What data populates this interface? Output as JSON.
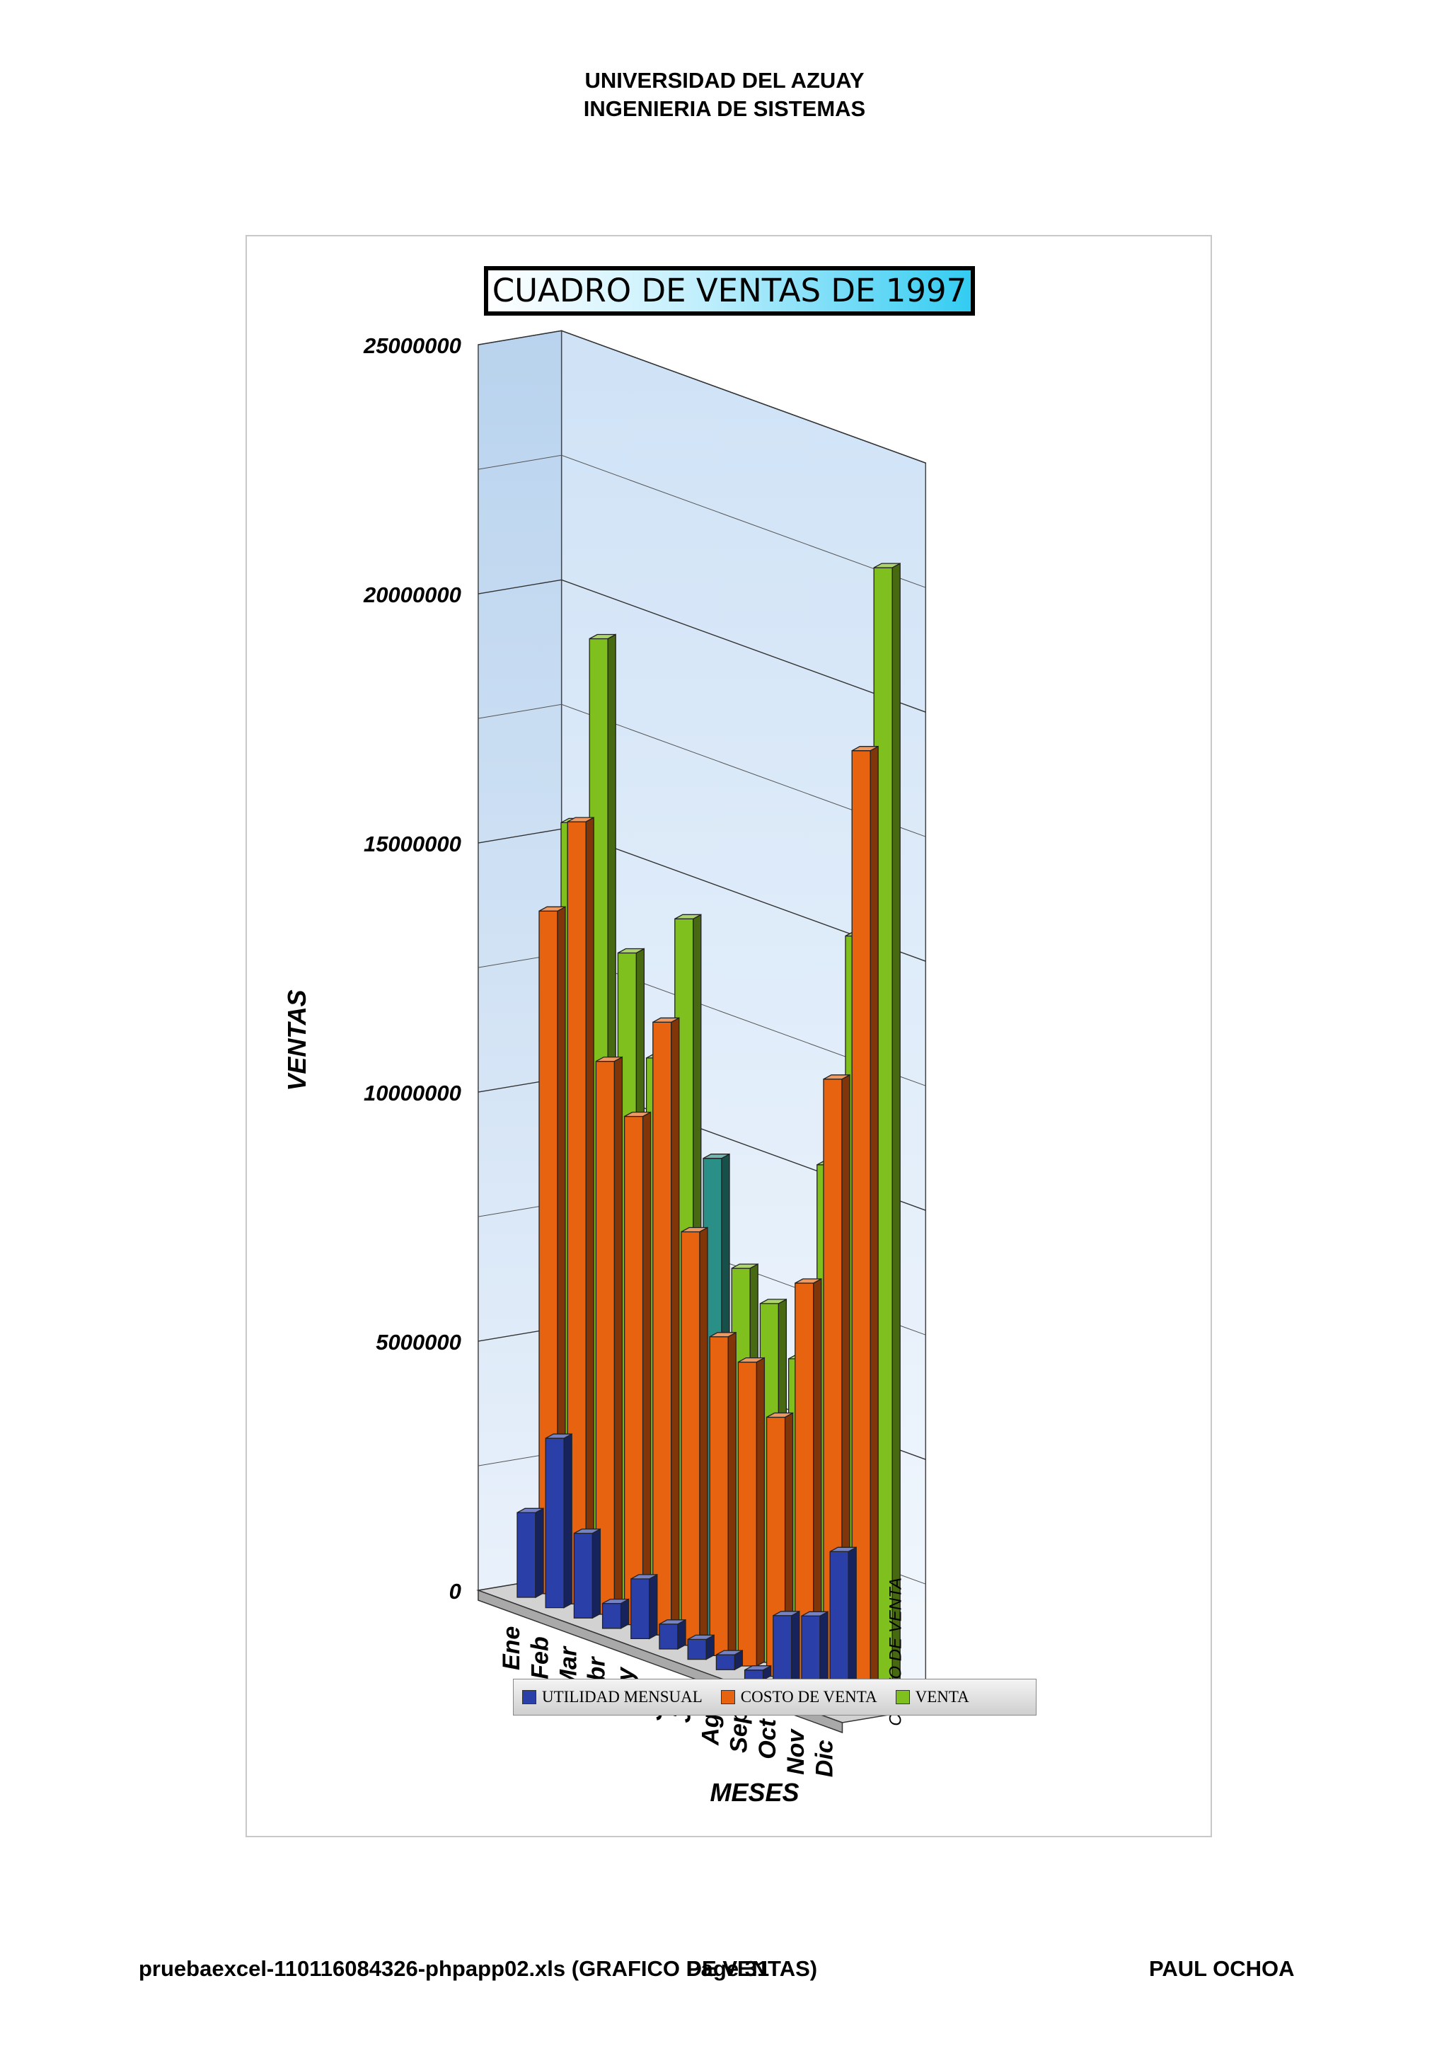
{
  "header": {
    "line1": "UNIVERSIDAD DEL AZUAY",
    "line2": "INGENIERIA DE SISTEMAS"
  },
  "footer": {
    "file": "pruebaexcel-110116084326-phpapp02.xls (GRAFICO DE VENTAS)",
    "page": "Page 31",
    "author": "PAUL OCHOA"
  },
  "colors": {
    "utilidad": "#2a3fa8",
    "costo": "#e8630f",
    "venta": "#7fbf1e",
    "venta_highlight": "#2a8f86"
  },
  "chart_data": {
    "type": "bar",
    "title": "CUADRO DE VENTAS DE 1997",
    "xlabel": "MESES",
    "ylabel": "VENTAS",
    "depth_axis_label": "COSTO DE VENTA",
    "ylim": [
      0,
      25000000
    ],
    "yticks": [
      "0",
      "5000000",
      "10000000",
      "15000000",
      "20000000",
      "25000000"
    ],
    "categories": [
      "Ene",
      "Feb",
      "Mar",
      "Abr",
      "May",
      "Jun",
      "Jul",
      "Ago",
      "Sep",
      "Oct",
      "Nov",
      "Dic"
    ],
    "series": [
      {
        "name": "UTILIDAD MENSUAL",
        "values": [
          1700000,
          3400000,
          1700000,
          500000,
          1200000,
          500000,
          400000,
          300000,
          200000,
          1500000,
          1700000,
          3200000
        ]
      },
      {
        "name": "COSTO DE VENTA",
        "values": [
          13700000,
          15700000,
          11100000,
          10200000,
          12300000,
          8300000,
          6400000,
          6100000,
          5200000,
          8100000,
          12400000,
          19200000
        ]
      },
      {
        "name": "VENTA",
        "values": [
          15400000,
          19300000,
          13200000,
          11300000,
          14300000,
          9700000,
          7700000,
          7200000,
          6300000,
          10400000,
          15200000,
          22800000
        ]
      }
    ],
    "legend": "bottom",
    "grid": true
  }
}
